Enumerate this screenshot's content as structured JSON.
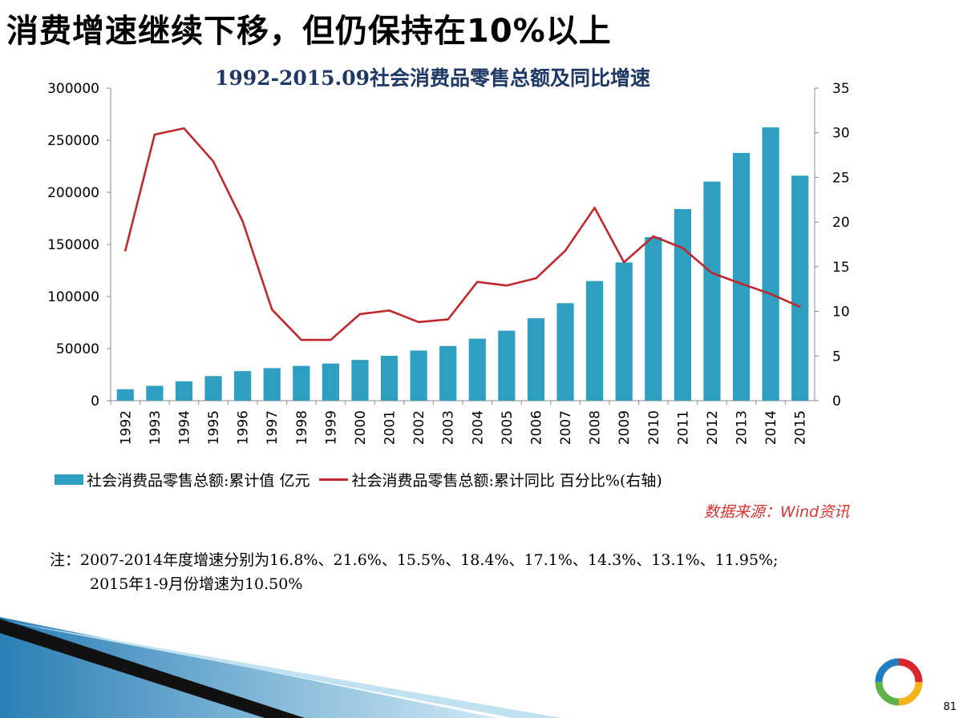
{
  "slide_title": "消费增速继续下移，但仍保持在10%以上",
  "source": "数据来源：Wind资讯",
  "note": {
    "line1": "注：2007-2014年度增速分别为16.8%、21.6%、15.5%、18.4%、17.1%、14.3%、13.1%、11.95%;",
    "line2": "2015年1-9月份增速为10.50%"
  },
  "page_number": "81",
  "colors": {
    "bar": "#2e9fc0",
    "line": "#c0282d",
    "title": "#1f3864",
    "source": "#e03030"
  },
  "chart_data": {
    "type": "bar+line",
    "title": "1992-2015.09社会消费品零售总额及同比增速",
    "categories": [
      "1992",
      "1993",
      "1994",
      "1995",
      "1996",
      "1997",
      "1998",
      "1999",
      "2000",
      "2001",
      "2002",
      "2003",
      "2004",
      "2005",
      "2006",
      "2007",
      "2008",
      "2009",
      "2010",
      "2011",
      "2012",
      "2013",
      "2014",
      "2015"
    ],
    "series": [
      {
        "name": "社会消费品零售总额:累计值 亿元",
        "type": "bar",
        "axis": "left",
        "values": [
          10994,
          14270,
          18623,
          23614,
          28360,
          31253,
          33378,
          35648,
          39106,
          43055,
          48136,
          52516,
          59501,
          67177,
          79145,
          93572,
          114830,
          132678,
          156998,
          183919,
          210307,
          237810,
          262394,
          216000
        ]
      },
      {
        "name": "社会消费品零售总额:累计同比 百分比%(右轴)",
        "type": "line",
        "axis": "right",
        "values": [
          16.8,
          29.8,
          30.5,
          26.8,
          20.1,
          10.2,
          6.8,
          6.8,
          9.7,
          10.1,
          8.8,
          9.1,
          13.3,
          12.9,
          13.7,
          16.8,
          21.6,
          15.5,
          18.4,
          17.1,
          14.3,
          13.1,
          11.95,
          10.5
        ]
      }
    ],
    "left_axis": {
      "min": 0,
      "max": 300000,
      "ticks": [
        "0",
        "50000",
        "100000",
        "150000",
        "200000",
        "250000",
        "300000"
      ]
    },
    "right_axis": {
      "min": 0,
      "max": 35,
      "ticks": [
        "0",
        "5",
        "10",
        "15",
        "20",
        "25",
        "30",
        "35"
      ]
    },
    "grid": false,
    "legend_position": "bottom"
  }
}
